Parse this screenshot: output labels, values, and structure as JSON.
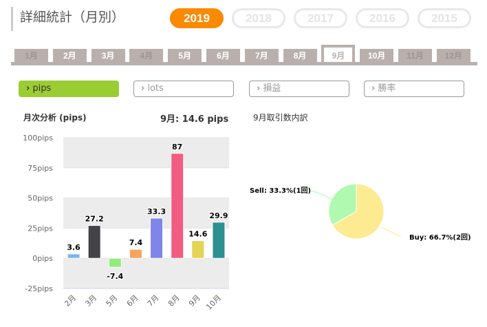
{
  "title": "詳細統計（月別）",
  "years": [
    {
      "label": "2019",
      "active": true
    },
    {
      "label": "2018"
    },
    {
      "label": "2017"
    },
    {
      "label": "2016"
    },
    {
      "label": "2015"
    }
  ],
  "months": [
    {
      "label": "1月",
      "disabled": true
    },
    {
      "label": "2月"
    },
    {
      "label": "3月"
    },
    {
      "label": "4月",
      "disabled": true
    },
    {
      "label": "5月"
    },
    {
      "label": "6月"
    },
    {
      "label": "7月"
    },
    {
      "label": "8月"
    },
    {
      "label": "9月",
      "active": true
    },
    {
      "label": "10月"
    },
    {
      "label": "11月",
      "disabled": true
    },
    {
      "label": "12月",
      "disabled": true
    }
  ],
  "metrics": [
    {
      "label": "pips",
      "active": true
    },
    {
      "label": "lots"
    },
    {
      "label": "損益"
    },
    {
      "label": "勝率"
    }
  ],
  "monthly_heading": "月次分析 (pips)",
  "selected_summary": "9月:  14.6 pips",
  "breakdown_heading": "9月取引数内訳",
  "chart_data": [
    {
      "type": "bar",
      "title": "月次分析 (pips)",
      "categories": [
        "2月",
        "3月",
        "5月",
        "6月",
        "7月",
        "8月",
        "9月",
        "10月"
      ],
      "values": [
        3.6,
        27.2,
        -7.4,
        7.4,
        33.3,
        87,
        14.6,
        29.9
      ],
      "labels": [
        "3.6",
        "27.2",
        "-7.4",
        "7.4",
        "33.3",
        "87",
        "14.6",
        "29.9"
      ],
      "colors": [
        "#7cb5ec",
        "#434348",
        "#90ed7d",
        "#f7a35c",
        "#8085e9",
        "#f15c80",
        "#e4d354",
        "#2b908f"
      ],
      "ylim": [
        -25,
        100
      ],
      "yticks": [
        {
          "v": 100,
          "label": "100pips"
        },
        {
          "v": 75,
          "label": "75pips"
        },
        {
          "v": 50,
          "label": "50pips"
        },
        {
          "v": 25,
          "label": "25pips"
        },
        {
          "v": 0,
          "label": "0pips"
        },
        {
          "v": -25,
          "label": "-25pips"
        }
      ]
    },
    {
      "type": "pie",
      "title": "9月取引数内訳",
      "slices": [
        {
          "name": "Buy",
          "value": 66.7,
          "count": 2,
          "label": "Buy: 66.7%(2回)",
          "color": "#fdeb91"
        },
        {
          "name": "Sell",
          "value": 33.3,
          "count": 1,
          "label": "Sell: 33.3%(1回)",
          "color": "#b0f9b0"
        }
      ]
    }
  ]
}
